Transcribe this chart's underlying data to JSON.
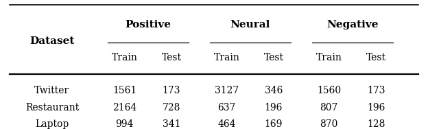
{
  "col_groups": [
    "Positive",
    "Neural",
    "Negative"
  ],
  "sub_cols": [
    "Train",
    "Test"
  ],
  "row_header": "Dataset",
  "rows": [
    "Twitter",
    "Restaurant",
    "Laptop"
  ],
  "data": [
    [
      "1561",
      "173",
      "3127",
      "346",
      "1560",
      "173"
    ],
    [
      "2164",
      "728",
      "637",
      "196",
      "807",
      "196"
    ],
    [
      "994",
      "341",
      "464",
      "169",
      "870",
      "128"
    ]
  ],
  "bg_color": "#ffffff",
  "text_color": "#000000",
  "font_family": "DejaVu Serif"
}
